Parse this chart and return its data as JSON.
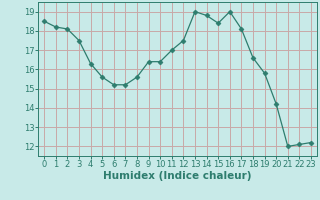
{
  "x": [
    0,
    1,
    2,
    3,
    4,
    5,
    6,
    7,
    8,
    9,
    10,
    11,
    12,
    13,
    14,
    15,
    16,
    17,
    18,
    19,
    20,
    21,
    22,
    23
  ],
  "y": [
    18.5,
    18.2,
    18.1,
    17.5,
    16.3,
    15.6,
    15.2,
    15.2,
    15.6,
    16.4,
    16.4,
    17.0,
    17.5,
    19.0,
    18.8,
    18.4,
    19.0,
    18.1,
    16.6,
    15.8,
    14.2,
    12.0,
    12.1,
    12.2
  ],
  "line_color": "#2e7d6e",
  "marker": "D",
  "marker_size": 2.5,
  "bg_color": "#c8eae8",
  "grid_color_h": "#c8a8a8",
  "grid_color_v": "#c8a8a8",
  "xlabel": "Humidex (Indice chaleur)",
  "xlim": [
    -0.5,
    23.5
  ],
  "ylim": [
    11.5,
    19.5
  ],
  "yticks": [
    12,
    13,
    14,
    15,
    16,
    17,
    18,
    19
  ],
  "xticks": [
    0,
    1,
    2,
    3,
    4,
    5,
    6,
    7,
    8,
    9,
    10,
    11,
    12,
    13,
    14,
    15,
    16,
    17,
    18,
    19,
    20,
    21,
    22,
    23
  ],
  "tick_fontsize": 6,
  "xlabel_fontsize": 7.5
}
